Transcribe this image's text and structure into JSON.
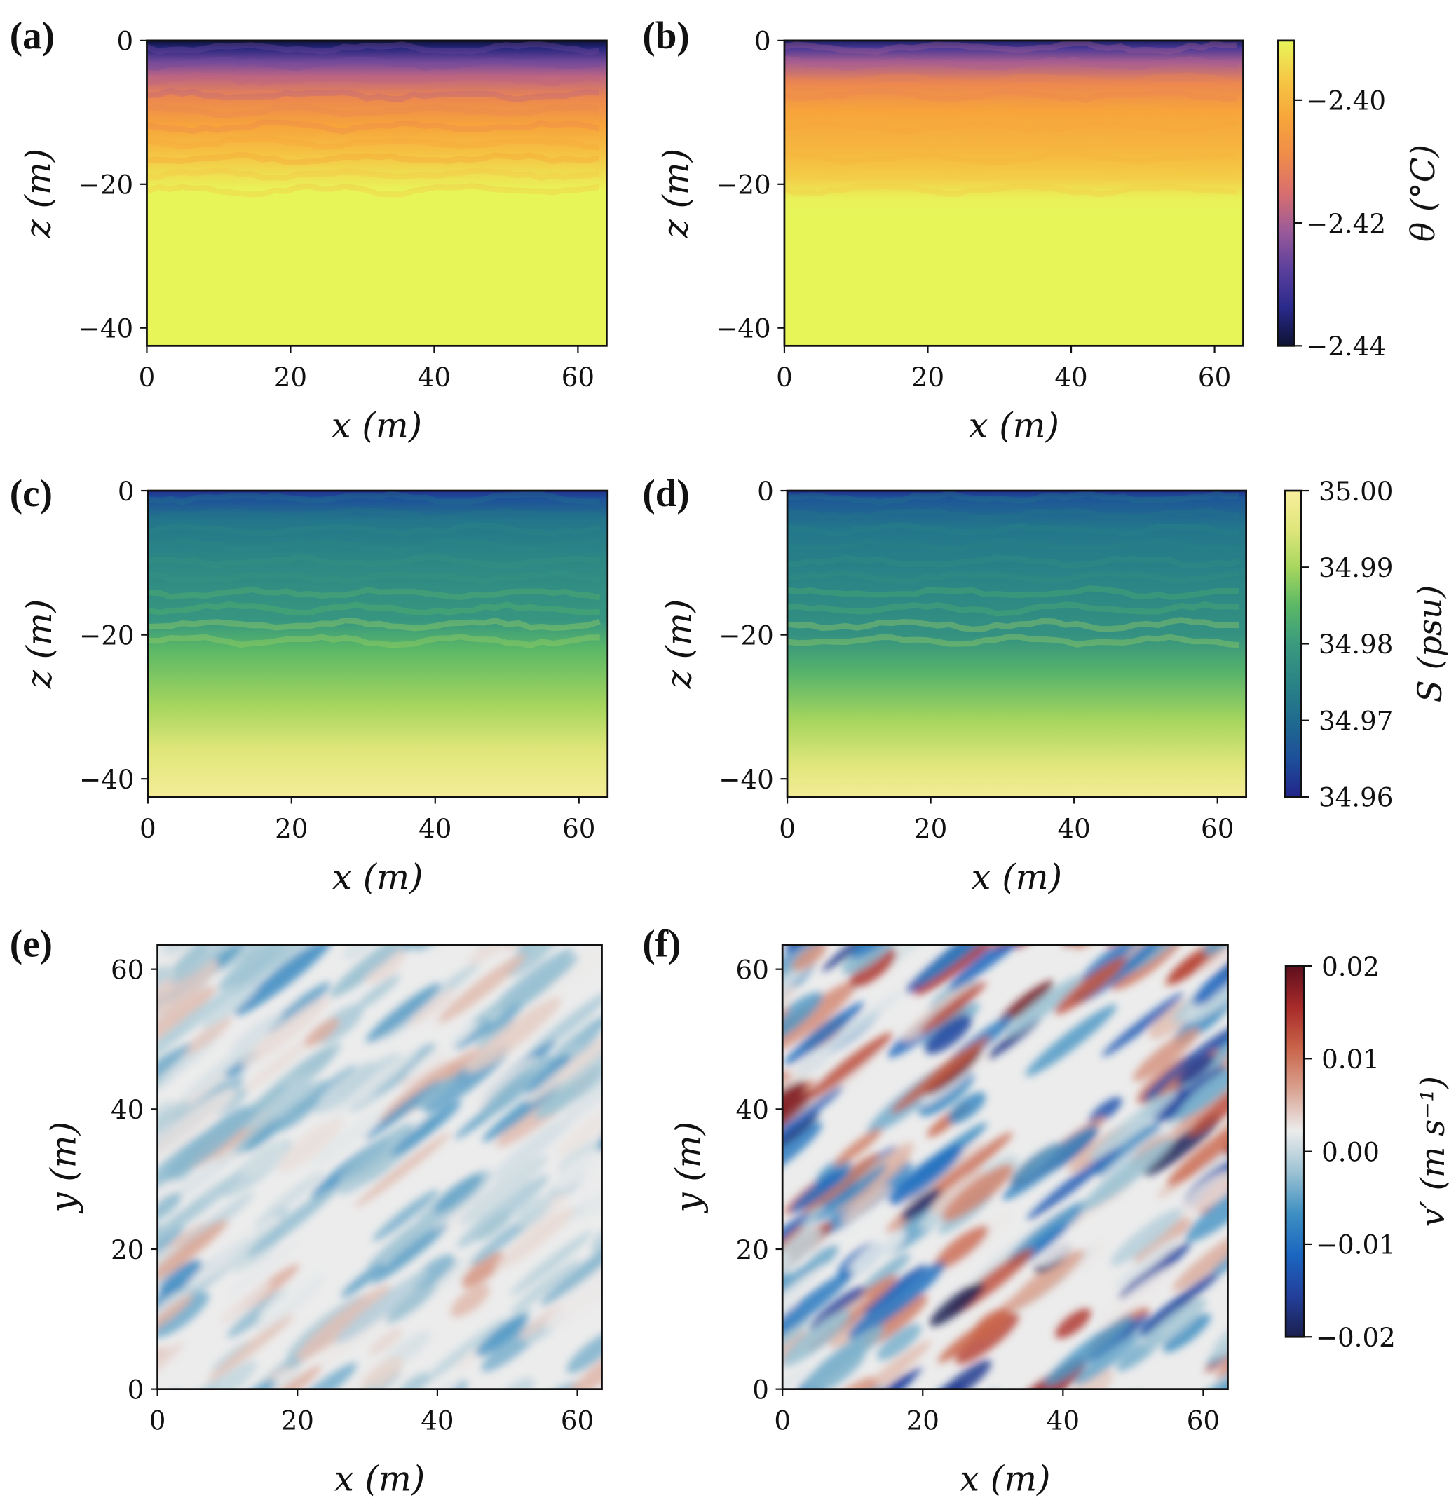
{
  "chart_data": {
    "type": "heatmap",
    "panels": [
      {
        "id": "a",
        "label": "(a)",
        "type": "heatmap",
        "variable": "theta",
        "xlabel": "x (m)",
        "ylabel": "z (m)",
        "xlim": [
          0,
          64
        ],
        "ylim": [
          -42.5,
          0
        ],
        "xticks": [
          0,
          20,
          40,
          60
        ],
        "yticks": [
          0,
          -20,
          -40
        ],
        "xtick_labels": [
          "0",
          "20",
          "40",
          "60"
        ],
        "ytick_labels": [
          "0",
          "−20",
          "−40"
        ],
        "profile": {
          "z": [
            0,
            -1,
            -3,
            -5,
            -8,
            -12,
            -16,
            -19,
            -21,
            -42.5
          ],
          "value": [
            -2.44,
            -2.435,
            -2.425,
            -2.418,
            -2.41,
            -2.403,
            -2.397,
            -2.393,
            -2.3905,
            -2.3905
          ]
        }
      },
      {
        "id": "b",
        "label": "(b)",
        "type": "heatmap",
        "variable": "theta",
        "xlabel": "x (m)",
        "ylabel": "z (m)",
        "xlim": [
          0,
          64
        ],
        "ylim": [
          -42.5,
          0
        ],
        "xticks": [
          0,
          20,
          40,
          60
        ],
        "yticks": [
          0,
          -20,
          -40
        ],
        "xtick_labels": [
          "0",
          "20",
          "40",
          "60"
        ],
        "ytick_labels": [
          "0",
          "−20",
          "−40"
        ],
        "profile": {
          "z": [
            0,
            -1,
            -3,
            -6,
            -10,
            -15,
            -19,
            -22,
            -24,
            -42.5
          ],
          "value": [
            -2.437,
            -2.43,
            -2.42,
            -2.41,
            -2.403,
            -2.4,
            -2.396,
            -2.391,
            -2.3905,
            -2.3905
          ]
        }
      },
      {
        "id": "c",
        "label": "(c)",
        "type": "heatmap",
        "variable": "S",
        "xlabel": "x (m)",
        "ylabel": "z (m)",
        "xlim": [
          0,
          64
        ],
        "ylim": [
          -42.5,
          0
        ],
        "xticks": [
          0,
          20,
          40,
          60
        ],
        "yticks": [
          0,
          -20,
          -40
        ],
        "xtick_labels": [
          "0",
          "20",
          "40",
          "60"
        ],
        "ytick_labels": [
          "0",
          "−20",
          "−40"
        ],
        "profile": {
          "z": [
            0,
            -1,
            -4,
            -10,
            -18,
            -22,
            -30,
            -36,
            -42.5
          ],
          "value": [
            34.961,
            34.965,
            34.972,
            34.976,
            34.979,
            34.985,
            34.99,
            34.995,
            34.999
          ]
        }
      },
      {
        "id": "d",
        "label": "(d)",
        "type": "heatmap",
        "variable": "S",
        "xlabel": "x (m)",
        "ylabel": "z (m)",
        "xlim": [
          0,
          64
        ],
        "ylim": [
          -42.5,
          0
        ],
        "xticks": [
          0,
          20,
          40,
          60
        ],
        "yticks": [
          0,
          -20,
          -40
        ],
        "xtick_labels": [
          "0",
          "20",
          "40",
          "60"
        ],
        "ytick_labels": [
          "0",
          "−20",
          "−40"
        ],
        "profile": {
          "z": [
            0,
            -1,
            -5,
            -12,
            -20,
            -25,
            -32,
            -38,
            -42.5
          ],
          "value": [
            34.961,
            34.966,
            34.972,
            34.975,
            34.978,
            34.984,
            34.99,
            34.995,
            34.999
          ]
        }
      },
      {
        "id": "e",
        "label": "(e)",
        "type": "heatmap",
        "variable": "v_prime",
        "xlabel": "x (m)",
        "ylabel": "y (m)",
        "xlim": [
          0,
          63.5
        ],
        "ylim": [
          0,
          63.5
        ],
        "xticks": [
          0,
          20,
          40,
          60
        ],
        "yticks": [
          0,
          20,
          40,
          60
        ],
        "xtick_labels": [
          "0",
          "20",
          "40",
          "60"
        ],
        "ytick_labels": [
          "0",
          "20",
          "40",
          "60"
        ],
        "amplitude": 0.006
      },
      {
        "id": "f",
        "label": "(f)",
        "type": "heatmap",
        "variable": "v_prime",
        "xlabel": "x (m)",
        "ylabel": "y (m)",
        "xlim": [
          0,
          63.5
        ],
        "ylim": [
          0,
          63.5
        ],
        "xticks": [
          0,
          20,
          40,
          60
        ],
        "yticks": [
          0,
          20,
          40,
          60
        ],
        "xtick_labels": [
          "0",
          "20",
          "40",
          "60"
        ],
        "ytick_labels": [
          "0",
          "20",
          "40",
          "60"
        ],
        "amplitude": 0.018
      }
    ],
    "colorbars": [
      {
        "id": "theta",
        "label": "θ (°C)",
        "range": [
          -2.44,
          -2.3903
        ],
        "ticks": [
          -2.4,
          -2.42,
          -2.44
        ],
        "tick_labels": [
          "−2.40",
          "−2.42",
          "−2.44"
        ],
        "colors": [
          "#0c1233",
          "#2a2a8c",
          "#5a3f9c",
          "#9a5a9a",
          "#d86e6e",
          "#f08c4a",
          "#f7a63a",
          "#f5c845",
          "#e8f65a"
        ]
      },
      {
        "id": "S",
        "label": "S (psu)",
        "range": [
          34.96,
          35.0
        ],
        "ticks": [
          35.0,
          34.99,
          34.98,
          34.97,
          34.96
        ],
        "tick_labels": [
          "35.00",
          "34.99",
          "34.98",
          "34.97",
          "34.96"
        ],
        "colors": [
          "#23248a",
          "#1d4f9a",
          "#1f6b8f",
          "#2a8486",
          "#3a9a7e",
          "#5bb866",
          "#a7d65e",
          "#e0e67a",
          "#f8ef9e"
        ]
      },
      {
        "id": "v_prime",
        "label": "v′ (m s⁻¹)",
        "range": [
          -0.02,
          0.02
        ],
        "ticks": [
          0.02,
          0.01,
          0.0,
          -0.01,
          -0.02
        ],
        "tick_labels": [
          "0.02",
          "0.01",
          "0.00",
          "−0.01",
          "−0.02"
        ],
        "colors": [
          "#1b1f4f",
          "#233f9a",
          "#1a66c0",
          "#3e8fc2",
          "#9cc2d2",
          "#ececec",
          "#d9a391",
          "#c9654a",
          "#a82b2a",
          "#5e0f1e"
        ]
      }
    ]
  }
}
